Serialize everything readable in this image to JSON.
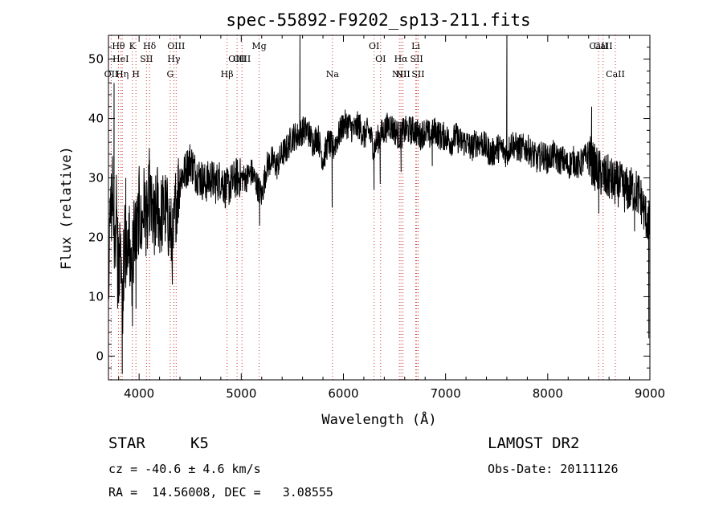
{
  "chart_data": {
    "type": "line",
    "title": "spec-55892-F9202_sp13-211.fits",
    "xlabel": "Wavelength (Å)",
    "ylabel": "Flux (relative)",
    "xlim": [
      3700,
      9000
    ],
    "ylim": [
      -4,
      54
    ],
    "xticks": [
      4000,
      5000,
      6000,
      7000,
      8000,
      9000
    ],
    "yticks": [
      0,
      10,
      20,
      30,
      40,
      50
    ],
    "grid": false,
    "legend": "none",
    "line_color": "#000000",
    "marker_color": "#cc3333",
    "spectral_lines": [
      {
        "label": "Hθ",
        "x": 3798,
        "row": 0
      },
      {
        "label": "OII",
        "x": 3727,
        "row": 2
      },
      {
        "label": "HeI",
        "x": 3820,
        "row": 1
      },
      {
        "label": "Hη",
        "x": 3835,
        "row": 2
      },
      {
        "label": "K",
        "x": 3934,
        "row": 0
      },
      {
        "label": "H",
        "x": 3969,
        "row": 2
      },
      {
        "label": "SII",
        "x": 4072,
        "row": 1
      },
      {
        "label": "Hδ",
        "x": 4102,
        "row": 0
      },
      {
        "label": "OIII",
        "x": 4363,
        "row": 0
      },
      {
        "label": "Hγ",
        "x": 4340,
        "row": 1
      },
      {
        "label": "G",
        "x": 4305,
        "row": 2
      },
      {
        "label": "Hβ",
        "x": 4861,
        "row": 2
      },
      {
        "label": "OIII",
        "x": 4959,
        "row": 1
      },
      {
        "label": "OIII",
        "x": 5007,
        "row": 1
      },
      {
        "label": "Mg",
        "x": 5175,
        "row": 0
      },
      {
        "label": "Na",
        "x": 5893,
        "row": 2
      },
      {
        "label": "OI",
        "x": 6300,
        "row": 0
      },
      {
        "label": "OI",
        "x": 6364,
        "row": 1
      },
      {
        "label": "NII",
        "x": 6548,
        "row": 2
      },
      {
        "label": "Hα",
        "x": 6563,
        "row": 1
      },
      {
        "label": "NII",
        "x": 6583,
        "row": 2
      },
      {
        "label": "Li",
        "x": 6708,
        "row": 0
      },
      {
        "label": "SII",
        "x": 6717,
        "row": 1
      },
      {
        "label": "SII",
        "x": 6731,
        "row": 2
      },
      {
        "label": "CaII",
        "x": 8498,
        "row": 0
      },
      {
        "label": "CaII",
        "x": 8542,
        "row": 0
      },
      {
        "label": "CaII",
        "x": 8662,
        "row": 2
      }
    ],
    "anchors": [
      [
        3700,
        15
      ],
      [
        3720,
        22
      ],
      [
        3740,
        28
      ],
      [
        3760,
        18
      ],
      [
        3780,
        25
      ],
      [
        3800,
        12
      ],
      [
        3820,
        20
      ],
      [
        3840,
        10
      ],
      [
        3860,
        22
      ],
      [
        3880,
        14
      ],
      [
        3900,
        24
      ],
      [
        3920,
        12
      ],
      [
        3940,
        18
      ],
      [
        3960,
        22
      ],
      [
        3980,
        20
      ],
      [
        4000,
        25
      ],
      [
        4020,
        21
      ],
      [
        4050,
        26
      ],
      [
        4080,
        22
      ],
      [
        4100,
        27
      ],
      [
        4120,
        24
      ],
      [
        4150,
        22
      ],
      [
        4180,
        26
      ],
      [
        4200,
        23
      ],
      [
        4250,
        25
      ],
      [
        4300,
        22
      ],
      [
        4330,
        18
      ],
      [
        4360,
        26
      ],
      [
        4400,
        30
      ],
      [
        4450,
        31
      ],
      [
        4500,
        33
      ],
      [
        4550,
        31
      ],
      [
        4600,
        30
      ],
      [
        4650,
        29
      ],
      [
        4700,
        30
      ],
      [
        4750,
        29
      ],
      [
        4800,
        30
      ],
      [
        4850,
        28
      ],
      [
        4900,
        29
      ],
      [
        4950,
        30
      ],
      [
        5000,
        30
      ],
      [
        5050,
        30
      ],
      [
        5100,
        31
      ],
      [
        5150,
        29
      ],
      [
        5200,
        27
      ],
      [
        5250,
        32
      ],
      [
        5300,
        33
      ],
      [
        5350,
        32
      ],
      [
        5400,
        34
      ],
      [
        5450,
        35
      ],
      [
        5500,
        37
      ],
      [
        5550,
        37
      ],
      [
        5600,
        38
      ],
      [
        5650,
        38
      ],
      [
        5700,
        36
      ],
      [
        5750,
        37
      ],
      [
        5800,
        33
      ],
      [
        5850,
        36
      ],
      [
        5900,
        35
      ],
      [
        5950,
        37
      ],
      [
        6000,
        39
      ],
      [
        6050,
        39
      ],
      [
        6100,
        38
      ],
      [
        6150,
        39
      ],
      [
        6200,
        37
      ],
      [
        6250,
        38
      ],
      [
        6300,
        35
      ],
      [
        6350,
        37
      ],
      [
        6400,
        38
      ],
      [
        6450,
        39
      ],
      [
        6500,
        38
      ],
      [
        6550,
        37
      ],
      [
        6600,
        38
      ],
      [
        6650,
        38
      ],
      [
        6700,
        38
      ],
      [
        6750,
        37
      ],
      [
        6800,
        38
      ],
      [
        6850,
        37
      ],
      [
        6900,
        38
      ],
      [
        6950,
        37
      ],
      [
        7000,
        37
      ],
      [
        7050,
        36
      ],
      [
        7100,
        37
      ],
      [
        7150,
        36
      ],
      [
        7200,
        36
      ],
      [
        7250,
        35
      ],
      [
        7300,
        36
      ],
      [
        7350,
        36
      ],
      [
        7400,
        35
      ],
      [
        7450,
        34
      ],
      [
        7500,
        35
      ],
      [
        7550,
        35
      ],
      [
        7600,
        34
      ],
      [
        7650,
        36
      ],
      [
        7700,
        35
      ],
      [
        7750,
        35
      ],
      [
        7800,
        35
      ],
      [
        7850,
        34
      ],
      [
        7900,
        33
      ],
      [
        7950,
        34
      ],
      [
        8000,
        33
      ],
      [
        8050,
        34
      ],
      [
        8100,
        33
      ],
      [
        8150,
        33
      ],
      [
        8200,
        32
      ],
      [
        8250,
        33
      ],
      [
        8300,
        32
      ],
      [
        8350,
        33
      ],
      [
        8400,
        34
      ],
      [
        8450,
        32
      ],
      [
        8500,
        31
      ],
      [
        8550,
        30
      ],
      [
        8600,
        30
      ],
      [
        8650,
        29
      ],
      [
        8700,
        29
      ],
      [
        8750,
        28
      ],
      [
        8800,
        28
      ],
      [
        8850,
        28
      ],
      [
        8900,
        27
      ],
      [
        8950,
        24
      ],
      [
        9000,
        22
      ]
    ],
    "features": [
      [
        3755,
        46
      ],
      [
        3790,
        8
      ],
      [
        3835,
        -3
      ],
      [
        3870,
        30
      ],
      [
        3935,
        5
      ],
      [
        3970,
        8
      ],
      [
        4100,
        35
      ],
      [
        4150,
        17
      ],
      [
        5180,
        22
      ],
      [
        5575,
        54
      ],
      [
        5890,
        25
      ],
      [
        6300,
        28
      ],
      [
        6360,
        29
      ],
      [
        6565,
        31
      ],
      [
        6870,
        32
      ],
      [
        7600,
        54
      ],
      [
        8430,
        42
      ],
      [
        8500,
        24
      ],
      [
        8850,
        21
      ],
      [
        8990,
        3
      ]
    ]
  },
  "info": {
    "object_class": "STAR",
    "subclass": "K5",
    "survey": "LAMOST DR2",
    "cz_line": "cz = -40.6 ± 4.6 km/s",
    "obs_date_line": "Obs-Date: 20111126",
    "coords_line": "RA =  14.56008, DEC =   3.08555"
  }
}
